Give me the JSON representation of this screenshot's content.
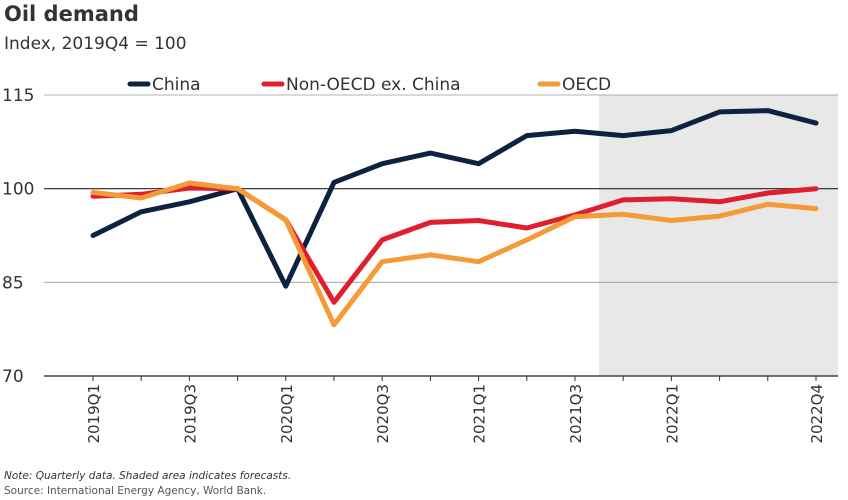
{
  "header": {
    "title": "Oil demand",
    "subtitle": "Index, 2019Q4 = 100"
  },
  "footer": {
    "note": "Note: Quarterly data. Shaded area indicates forecasts.",
    "source": "Source: International Energy Agency, World Bank."
  },
  "chart_data": {
    "type": "line",
    "title": "Oil demand",
    "subtitle": "Index, 2019Q4 = 100",
    "xlabel": "",
    "ylabel": "",
    "ylim": [
      70,
      115
    ],
    "yticks": [
      70,
      85,
      100,
      115
    ],
    "categories": [
      "2019Q1",
      "2019Q2",
      "2019Q3",
      "2019Q4",
      "2020Q1",
      "2020Q2",
      "2020Q3",
      "2020Q4",
      "2021Q1",
      "2021Q2",
      "2021Q3",
      "2021Q4",
      "2022Q1",
      "2022Q2",
      "2022Q3",
      "2022Q4"
    ],
    "x_tick_labels": [
      "2019Q1",
      "2019Q3",
      "2020Q1",
      "2020Q3",
      "2021Q1",
      "2021Q3",
      "2022Q1",
      "2022Q4"
    ],
    "forecast_start": "2021Q4",
    "forecast_shading": "#e8e8e8",
    "legend_position": "top",
    "series": [
      {
        "name": "China",
        "color": "#0d2240",
        "values": [
          92.5,
          96.3,
          97.9,
          100,
          84.4,
          101,
          104,
          105.7,
          104,
          108.5,
          109.2,
          108.5,
          109.3,
          112.3,
          112.5,
          110.5
        ]
      },
      {
        "name": "Non-OECD ex. China",
        "color": "#e01e2d",
        "values": [
          98.8,
          99.1,
          100.1,
          100,
          95,
          81.8,
          91.8,
          94.6,
          94.9,
          93.7,
          95.8,
          98.2,
          98.4,
          97.9,
          99.3,
          100
        ]
      },
      {
        "name": "OECD",
        "color": "#f59a38",
        "values": [
          99.4,
          98.5,
          100.9,
          100,
          95,
          78.2,
          88.3,
          89.4,
          88.3,
          91.8,
          95.5,
          95.9,
          94.9,
          95.6,
          97.5,
          96.8
        ]
      }
    ]
  }
}
